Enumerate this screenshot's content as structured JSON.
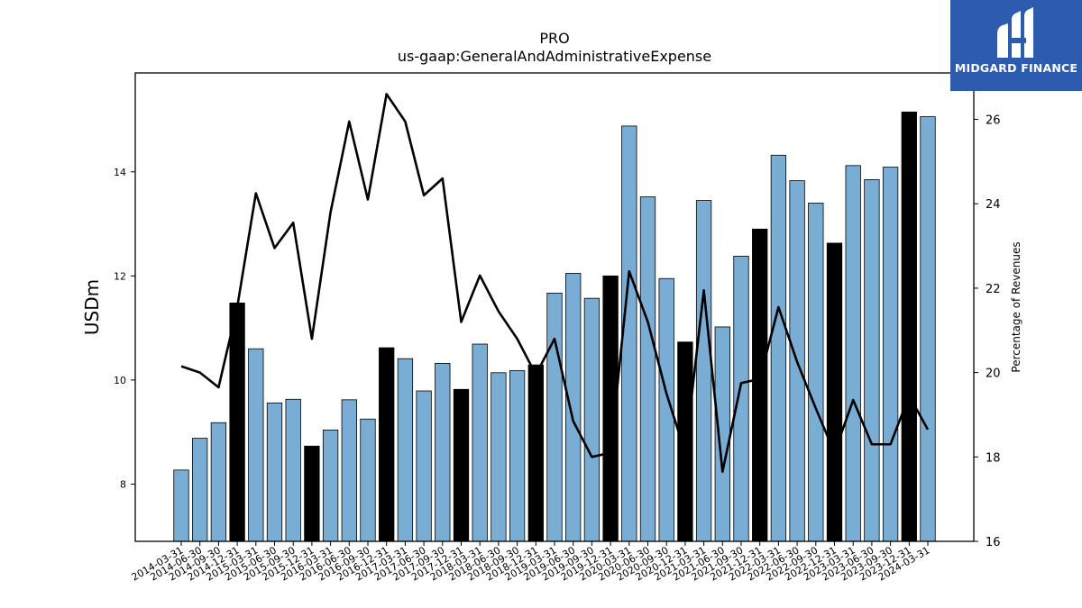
{
  "logo": {
    "text": "MIDGARD FINANCE"
  },
  "chart_data": {
    "type": "bar",
    "title": "PRO",
    "subtitle": "us-gaap:GeneralAndAdministrativeExpense",
    "ylabel": "USDm",
    "y2label": "Percentage of Revenues",
    "ylim": [
      6.9,
      15.9
    ],
    "y2lim": [
      16,
      27.1
    ],
    "yticks": [
      8,
      10,
      12,
      14
    ],
    "y2ticks": [
      16,
      18,
      20,
      22,
      24,
      26
    ],
    "colors": {
      "bar": "#7aadd4",
      "bar_highlight": "#000000",
      "line": "#000000",
      "edge": "#000000"
    },
    "categories": [
      "2014-03-31",
      "2014-06-30",
      "2014-09-30",
      "2014-12-31",
      "2015-03-31",
      "2015-06-30",
      "2015-09-30",
      "2015-12-31",
      "2016-03-31",
      "2016-06-30",
      "2016-09-30",
      "2016-12-31",
      "2017-03-31",
      "2017-06-30",
      "2017-09-30",
      "2017-12-31",
      "2018-03-31",
      "2018-06-30",
      "2018-09-30",
      "2018-12-31",
      "2019-03-31",
      "2019-06-30",
      "2019-09-30",
      "2019-12-31",
      "2020-03-31",
      "2020-06-30",
      "2020-09-30",
      "2020-12-31",
      "2021-03-31",
      "2021-06-30",
      "2021-09-30",
      "2021-12-31",
      "2022-03-31",
      "2022-06-30",
      "2022-09-30",
      "2022-12-31",
      "2023-03-31",
      "2023-06-30",
      "2023-09-30",
      "2023-12-31",
      "2024-03-31"
    ],
    "series": [
      {
        "axis": "left",
        "values": [
          8.27,
          8.88,
          9.18,
          11.48,
          10.6,
          9.56,
          9.63,
          8.73,
          9.04,
          9.62,
          9.25,
          10.62,
          10.41,
          9.79,
          10.32,
          9.82,
          10.69,
          10.14,
          10.18,
          10.29,
          11.67,
          12.05,
          11.57,
          12.0,
          14.88,
          13.52,
          11.95,
          10.73,
          13.45,
          11.02,
          12.38,
          12.9,
          14.32,
          13.83,
          13.4,
          12.63,
          14.12,
          13.85,
          14.09,
          15.15,
          15.06
        ],
        "highlight": [
          false,
          false,
          false,
          true,
          false,
          false,
          false,
          true,
          false,
          false,
          false,
          true,
          false,
          false,
          false,
          true,
          false,
          false,
          false,
          true,
          false,
          false,
          false,
          true,
          false,
          false,
          false,
          true,
          false,
          false,
          false,
          true,
          false,
          false,
          false,
          true,
          false,
          false,
          false,
          true,
          false
        ]
      },
      {
        "axis": "right",
        "type": "line",
        "values": [
          20.15,
          20.0,
          19.65,
          21.55,
          24.25,
          22.95,
          23.55,
          20.8,
          23.8,
          25.95,
          24.1,
          26.6,
          25.95,
          24.2,
          24.6,
          21.2,
          22.3,
          21.45,
          20.8,
          19.95,
          20.8,
          18.85,
          18.0,
          18.1,
          22.4,
          21.2,
          19.5,
          18.1,
          21.95,
          17.65,
          19.75,
          19.85,
          21.55,
          20.25,
          19.15,
          18.1,
          19.35,
          18.3,
          18.3,
          19.45,
          18.65
        ]
      }
    ],
    "grid": false,
    "legend": "none"
  }
}
